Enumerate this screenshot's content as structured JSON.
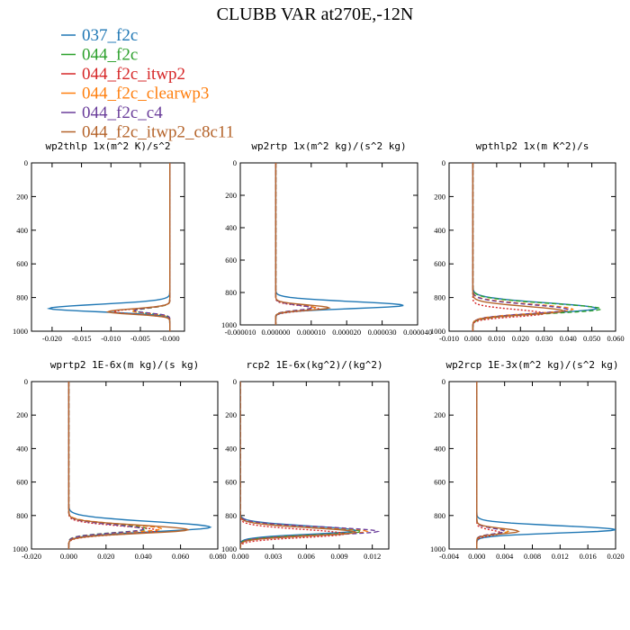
{
  "title": "CLUBB VAR at270E,-12N",
  "legend": [
    {
      "label": "037_f2c",
      "color": "#1f77b4",
      "dash": "solid"
    },
    {
      "label": "044_f2c",
      "color": "#2ca02c",
      "dash": "dashed"
    },
    {
      "label": "044_f2c_itwp2",
      "color": "#d62728",
      "dash": "dotted"
    },
    {
      "label": "044_f2c_clearwp3",
      "color": "#ff7f0e",
      "dash": "dashed"
    },
    {
      "label": "044_f2c_c4",
      "color": "#6a3d9a",
      "dash": "dashed"
    },
    {
      "label": "044_f2c_itwp2_c8c11",
      "color": "#b5642b",
      "dash": "solid"
    }
  ],
  "chart_data": [
    {
      "type": "line",
      "title": "wp2thlp  1x(m^2 K)/s^2",
      "xlim": [
        -0.0235,
        0.0025
      ],
      "ylim": [
        0,
        1000
      ],
      "xticks": [
        -0.02,
        -0.015,
        -0.01,
        -0.005,
        -0.0
      ],
      "xticklabels": [
        "-0.020",
        "-0.015",
        "-0.010",
        "-0.005",
        "-0.000"
      ],
      "yticks": [
        0,
        200,
        400,
        600,
        800,
        1000
      ],
      "profiles": [
        {
          "series": "037_f2c",
          "base": 0.0,
          "amp": -0.0205,
          "center": 865,
          "width": 40,
          "near": 1.4
        },
        {
          "series": "044_f2c",
          "base": 0.0,
          "amp": -0.006,
          "center": 880,
          "width": 28,
          "near": 1.4
        },
        {
          "series": "044_f2c_itwp2",
          "base": 0.0,
          "amp": -0.0095,
          "center": 885,
          "width": 30,
          "near": 1.4
        },
        {
          "series": "044_f2c_clearwp3",
          "base": 0.0,
          "amp": -0.0065,
          "center": 880,
          "width": 28,
          "near": 1.4
        },
        {
          "series": "044_f2c_c4",
          "base": 0.0,
          "amp": -0.006,
          "center": 878,
          "width": 28,
          "near": 1.4
        },
        {
          "series": "044_f2c_itwp2_c8c11",
          "base": 0.0,
          "amp": -0.0105,
          "center": 885,
          "width": 30,
          "near": 1.4
        }
      ]
    },
    {
      "type": "line",
      "title": "wp2rtp  1x(m^2 kg)/(s^2 kg)",
      "xlim": [
        -1e-05,
        4e-05
      ],
      "ylim": [
        0,
        1000
      ],
      "xticks": [
        -1e-05,
        0.0,
        1e-05,
        2e-05,
        3e-05,
        4e-05
      ],
      "xticklabels": [
        "-0.000010",
        "0.000000",
        "0.000010",
        "0.000020",
        "0.000030",
        "0.000040"
      ],
      "yticks": [
        0,
        200,
        400,
        600,
        800,
        1000
      ],
      "profiles": [
        {
          "series": "037_f2c",
          "base": 0.0,
          "amp": 3.6e-05,
          "center": 880,
          "width": 40,
          "near": 1.4
        },
        {
          "series": "044_f2c",
          "base": 0.0,
          "amp": 1.1e-05,
          "center": 895,
          "width": 30,
          "near": 1.4
        },
        {
          "series": "044_f2c_itwp2",
          "base": 0.0,
          "amp": 1.2e-05,
          "center": 900,
          "width": 30,
          "near": 1.4
        },
        {
          "series": "044_f2c_clearwp3",
          "base": 0.0,
          "amp": 1.1e-05,
          "center": 895,
          "width": 30,
          "near": 1.4
        },
        {
          "series": "044_f2c_c4",
          "base": 0.0,
          "amp": 1e-05,
          "center": 895,
          "width": 30,
          "near": 1.4
        },
        {
          "series": "044_f2c_itwp2_c8c11",
          "base": 0.0,
          "amp": 1.5e-05,
          "center": 895,
          "width": 30,
          "near": 1.4
        }
      ]
    },
    {
      "type": "line",
      "title": "wpthlp2  1x(m K^2)/s",
      "xlim": [
        -0.01,
        0.06
      ],
      "ylim": [
        0,
        1000
      ],
      "xticks": [
        -0.01,
        0.0,
        0.01,
        0.02,
        0.03,
        0.04,
        0.05,
        0.06
      ],
      "xticklabels": [
        "-0.010",
        "0.000",
        "0.010",
        "0.020",
        "0.030",
        "0.040",
        "0.050",
        "0.060"
      ],
      "yticks": [
        0,
        200,
        400,
        600,
        800,
        1000
      ],
      "profiles": [
        {
          "series": "037_f2c",
          "base": 0.0,
          "amp": 0.052,
          "center": 865,
          "width": 55,
          "near": 1.4
        },
        {
          "series": "044_f2c",
          "base": 0.0,
          "amp": 0.054,
          "center": 868,
          "width": 55,
          "near": 1.4
        },
        {
          "series": "044_f2c_itwp2",
          "base": 0.0,
          "amp": 0.03,
          "center": 895,
          "width": 40,
          "near": 1.4
        },
        {
          "series": "044_f2c_clearwp3",
          "base": 0.0,
          "amp": 0.042,
          "center": 870,
          "width": 50,
          "near": 1.4
        },
        {
          "series": "044_f2c_c4",
          "base": 0.0,
          "amp": 0.04,
          "center": 872,
          "width": 50,
          "near": 1.4
        },
        {
          "series": "044_f2c_itwp2_c8c11",
          "base": 0.0,
          "amp": 0.038,
          "center": 880,
          "width": 45,
          "near": 1.4
        }
      ]
    },
    {
      "type": "line",
      "title": "wprtp2  1E-6x(m kg)/(s kg)",
      "xlim": [
        -0.02,
        0.08
      ],
      "ylim": [
        0,
        1000
      ],
      "xticks": [
        -0.02,
        0.0,
        0.02,
        0.04,
        0.06,
        0.08
      ],
      "xticklabels": [
        "-0.020",
        "0.000",
        "0.020",
        "0.040",
        "0.060",
        "0.080"
      ],
      "yticks": [
        0,
        200,
        400,
        600,
        800,
        1000
      ],
      "profiles": [
        {
          "series": "037_f2c",
          "base": 0.0,
          "amp": 0.076,
          "center": 870,
          "width": 55,
          "near": 1.4
        },
        {
          "series": "044_f2c",
          "base": 0.0,
          "amp": 0.042,
          "center": 880,
          "width": 45,
          "near": 1.4
        },
        {
          "series": "044_f2c_itwp2",
          "base": 0.0,
          "amp": 0.048,
          "center": 890,
          "width": 45,
          "near": 1.4
        },
        {
          "series": "044_f2c_clearwp3",
          "base": 0.0,
          "amp": 0.05,
          "center": 880,
          "width": 45,
          "near": 1.4
        },
        {
          "series": "044_f2c_c4",
          "base": 0.0,
          "amp": 0.04,
          "center": 882,
          "width": 45,
          "near": 1.4
        },
        {
          "series": "044_f2c_itwp2_c8c11",
          "base": 0.0,
          "amp": 0.064,
          "center": 885,
          "width": 45,
          "near": 1.4
        }
      ]
    },
    {
      "type": "line",
      "title": "rcp2  1E-6x(kg^2)/(kg^2)",
      "xlim": [
        0.0,
        0.0135
      ],
      "ylim": [
        0,
        1000
      ],
      "xticks": [
        0.0,
        0.003,
        0.006,
        0.009,
        0.012
      ],
      "xticklabels": [
        "0.000",
        "0.003",
        "0.006",
        "0.009",
        "0.012"
      ],
      "yticks": [
        0,
        200,
        400,
        600,
        800,
        1000
      ],
      "profiles": [
        {
          "series": "037_f2c",
          "base": 0.0,
          "amp": 0.0105,
          "center": 890,
          "width": 45,
          "near": 1.4
        },
        {
          "series": "044_f2c",
          "base": 0.0,
          "amp": 0.011,
          "center": 895,
          "width": 45,
          "near": 1.4
        },
        {
          "series": "044_f2c_itwp2",
          "base": 0.0,
          "amp": 0.0095,
          "center": 910,
          "width": 45,
          "near": 1.4
        },
        {
          "series": "044_f2c_clearwp3",
          "base": 0.0,
          "amp": 0.0115,
          "center": 895,
          "width": 45,
          "near": 1.4
        },
        {
          "series": "044_f2c_c4",
          "base": 0.0,
          "amp": 0.0125,
          "center": 895,
          "width": 45,
          "near": 1.4
        },
        {
          "series": "044_f2c_itwp2_c8c11",
          "base": 0.0,
          "amp": 0.0105,
          "center": 900,
          "width": 45,
          "near": 1.4
        }
      ]
    },
    {
      "type": "line",
      "title": "wp2rcp  1E-3x(m^2 kg)/(s^2 kg)",
      "xlim": [
        -0.004,
        0.02
      ],
      "ylim": [
        0,
        1000
      ],
      "xticks": [
        -0.004,
        0.0,
        0.004,
        0.008,
        0.012,
        0.016,
        0.02
      ],
      "xticklabels": [
        "-0.004",
        "0.000",
        "0.004",
        "0.008",
        "0.012",
        "0.016",
        "0.020"
      ],
      "yticks": [
        0,
        200,
        400,
        600,
        800,
        1000
      ],
      "profiles": [
        {
          "series": "037_f2c",
          "base": 0.0,
          "amp": 0.02,
          "center": 885,
          "width": 40,
          "near": 1.4
        },
        {
          "series": "044_f2c",
          "base": 0.0,
          "amp": 0.0045,
          "center": 895,
          "width": 30,
          "near": 1.4
        },
        {
          "series": "044_f2c_itwp2",
          "base": 0.0,
          "amp": 0.0035,
          "center": 905,
          "width": 30,
          "near": 1.4
        },
        {
          "series": "044_f2c_clearwp3",
          "base": 0.0,
          "amp": 0.0045,
          "center": 895,
          "width": 30,
          "near": 1.4
        },
        {
          "series": "044_f2c_c4",
          "base": 0.0,
          "amp": 0.004,
          "center": 895,
          "width": 30,
          "near": 1.4
        },
        {
          "series": "044_f2c_itwp2_c8c11",
          "base": 0.0,
          "amp": 0.006,
          "center": 895,
          "width": 30,
          "near": 1.4
        }
      ]
    }
  ]
}
